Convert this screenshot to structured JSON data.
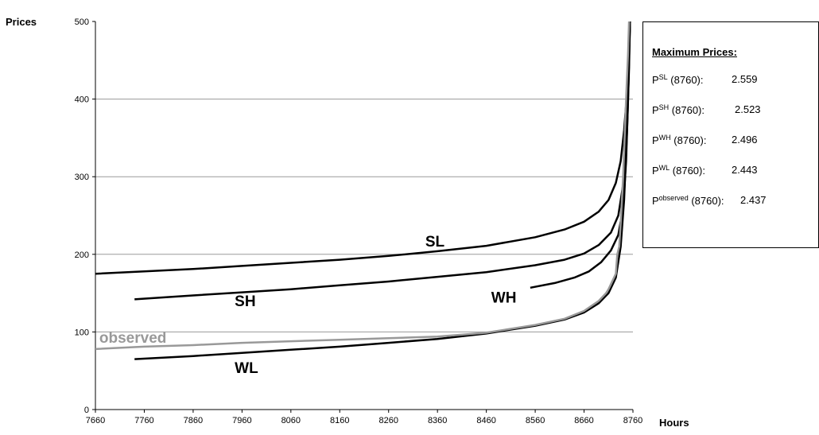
{
  "chart_data": {
    "type": "line",
    "ylabel": "Prices",
    "xlabel": "Hours",
    "xlim": [
      7660,
      8760
    ],
    "ylim": [
      0,
      500
    ],
    "xticks": [
      7660,
      7760,
      7860,
      7960,
      8060,
      8160,
      8260,
      8360,
      8460,
      8560,
      8660,
      8760
    ],
    "yticks": [
      0,
      100,
      200,
      300,
      400,
      500
    ],
    "grid": "horizontal",
    "series": [
      {
        "name": "SL",
        "color": "#000000",
        "points": [
          [
            7660,
            175
          ],
          [
            7760,
            178
          ],
          [
            7860,
            181
          ],
          [
            7960,
            185
          ],
          [
            8060,
            189
          ],
          [
            8160,
            193
          ],
          [
            8260,
            198
          ],
          [
            8360,
            204
          ],
          [
            8460,
            211
          ],
          [
            8560,
            222
          ],
          [
            8620,
            232
          ],
          [
            8660,
            242
          ],
          [
            8690,
            255
          ],
          [
            8710,
            270
          ],
          [
            8725,
            292
          ],
          [
            8735,
            320
          ],
          [
            8742,
            360
          ],
          [
            8747,
            400
          ],
          [
            8751,
            450
          ],
          [
            8754,
            500
          ]
        ]
      },
      {
        "name": "SH",
        "color": "#000000",
        "points": [
          [
            7740,
            142
          ],
          [
            7860,
            147
          ],
          [
            7960,
            151
          ],
          [
            8060,
            155
          ],
          [
            8160,
            160
          ],
          [
            8260,
            165
          ],
          [
            8360,
            171
          ],
          [
            8460,
            177
          ],
          [
            8560,
            186
          ],
          [
            8620,
            193
          ],
          [
            8660,
            201
          ],
          [
            8690,
            212
          ],
          [
            8715,
            228
          ],
          [
            8730,
            250
          ],
          [
            8740,
            290
          ],
          [
            8746,
            350
          ],
          [
            8750,
            420
          ],
          [
            8754,
            500
          ]
        ]
      },
      {
        "name": "WH",
        "color": "#000000",
        "points": [
          [
            8550,
            157
          ],
          [
            8600,
            163
          ],
          [
            8640,
            170
          ],
          [
            8670,
            178
          ],
          [
            8695,
            190
          ],
          [
            8715,
            205
          ],
          [
            8730,
            225
          ],
          [
            8740,
            260
          ],
          [
            8746,
            320
          ],
          [
            8750,
            400
          ],
          [
            8754,
            500
          ]
        ]
      },
      {
        "name": "WL",
        "color": "#000000",
        "points": [
          [
            7740,
            65
          ],
          [
            7860,
            69
          ],
          [
            7960,
            73
          ],
          [
            8060,
            77
          ],
          [
            8160,
            81
          ],
          [
            8260,
            86
          ],
          [
            8360,
            91
          ],
          [
            8460,
            98
          ],
          [
            8560,
            108
          ],
          [
            8620,
            116
          ],
          [
            8660,
            125
          ],
          [
            8690,
            137
          ],
          [
            8710,
            150
          ],
          [
            8725,
            170
          ],
          [
            8735,
            210
          ],
          [
            8742,
            270
          ],
          [
            8748,
            360
          ],
          [
            8752,
            440
          ],
          [
            8754,
            500
          ]
        ]
      },
      {
        "name": "observed",
        "color": "#999999",
        "points": [
          [
            7660,
            78
          ],
          [
            7760,
            81
          ],
          [
            7860,
            83
          ],
          [
            7960,
            86
          ],
          [
            8060,
            88
          ],
          [
            8160,
            90
          ],
          [
            8260,
            92
          ],
          [
            8360,
            94
          ],
          [
            8460,
            99
          ],
          [
            8560,
            109
          ],
          [
            8620,
            117
          ],
          [
            8660,
            127
          ],
          [
            8690,
            140
          ],
          [
            8705,
            150
          ],
          [
            8710,
            155
          ],
          [
            8725,
            175
          ],
          [
            8728,
            200
          ],
          [
            8732,
            210
          ],
          [
            8735,
            240
          ],
          [
            8740,
            300
          ],
          [
            8746,
            400
          ],
          [
            8750,
            460
          ],
          [
            8752,
            500
          ]
        ]
      }
    ],
    "series_labels": [
      {
        "text": "SL",
        "x": 8335,
        "y": 210,
        "color": "#000000"
      },
      {
        "text": "SH",
        "x": 7945,
        "y": 133,
        "color": "#000000"
      },
      {
        "text": "WH",
        "x": 8470,
        "y": 138,
        "color": "#000000"
      },
      {
        "text": "WL",
        "x": 7945,
        "y": 47,
        "color": "#000000"
      },
      {
        "text": "observed",
        "x": 7668,
        "y": 86,
        "color": "#999999"
      }
    ]
  },
  "legend": {
    "title": "Maximum Prices:",
    "rows": [
      {
        "base": "P",
        "sup": "SL",
        "suffix": "(8760):",
        "value": "2.559"
      },
      {
        "base": "P",
        "sup": "SH",
        "suffix": "(8760):",
        "value": "2.523"
      },
      {
        "base": "P",
        "sup": "WH",
        "suffix": "(8760):",
        "value": "2.496"
      },
      {
        "base": "P",
        "sup": "WL",
        "suffix": "(8760):",
        "value": "2.443"
      },
      {
        "base": "P",
        "sup": "observed",
        "suffix": "(8760):",
        "value": "2.437"
      }
    ]
  }
}
